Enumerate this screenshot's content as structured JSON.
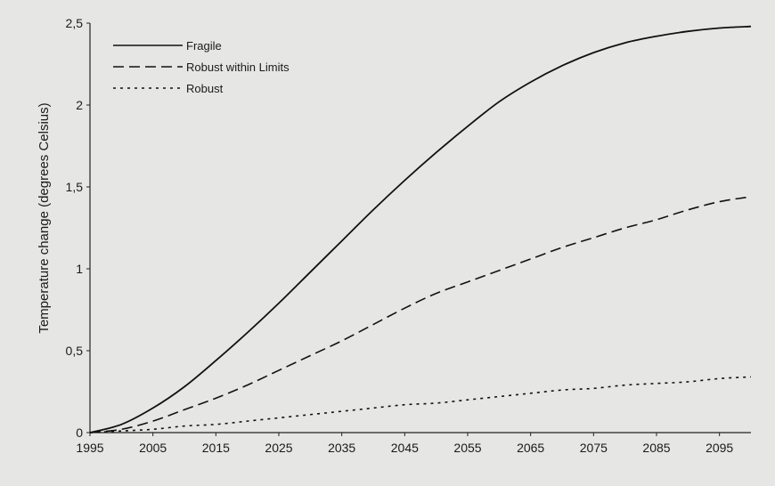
{
  "chart_data": {
    "type": "line",
    "title": "",
    "xlabel": "",
    "ylabel": "Temperature change (degrees Celsius)",
    "xlim": [
      1995,
      2100
    ],
    "ylim": [
      0,
      2.5
    ],
    "x_ticks": [
      1995,
      2005,
      2015,
      2025,
      2035,
      2045,
      2055,
      2065,
      2075,
      2085,
      2095
    ],
    "x_tick_labels": [
      "1995",
      "2005",
      "2015",
      "2025",
      "2035",
      "2045",
      "2055",
      "2065",
      "2075",
      "2085",
      "2095"
    ],
    "y_ticks": [
      0,
      0.5,
      1,
      1.5,
      2,
      2.5
    ],
    "y_tick_labels": [
      "0",
      "0,5",
      "1",
      "1,5",
      "2",
      "2,5"
    ],
    "grid": false,
    "legend_position": "top-left",
    "x": [
      1995,
      2000,
      2005,
      2010,
      2015,
      2020,
      2025,
      2030,
      2035,
      2040,
      2045,
      2050,
      2055,
      2060,
      2065,
      2070,
      2075,
      2080,
      2085,
      2090,
      2095,
      2100
    ],
    "series": [
      {
        "name": "Fragile",
        "style": "solid",
        "color": "#111111",
        "values": [
          0,
          0.05,
          0.15,
          0.28,
          0.44,
          0.61,
          0.79,
          0.98,
          1.17,
          1.36,
          1.54,
          1.71,
          1.87,
          2.02,
          2.14,
          2.24,
          2.32,
          2.38,
          2.42,
          2.45,
          2.47,
          2.48
        ]
      },
      {
        "name": "Robust within Limits",
        "style": "dashed",
        "color": "#111111",
        "values": [
          0,
          0.02,
          0.07,
          0.14,
          0.21,
          0.29,
          0.38,
          0.47,
          0.56,
          0.66,
          0.76,
          0.85,
          0.92,
          0.99,
          1.06,
          1.13,
          1.19,
          1.25,
          1.3,
          1.36,
          1.41,
          1.44
        ]
      },
      {
        "name": "Robust",
        "style": "dotted",
        "color": "#111111",
        "values": [
          0,
          0.01,
          0.02,
          0.04,
          0.05,
          0.07,
          0.09,
          0.11,
          0.13,
          0.15,
          0.17,
          0.18,
          0.2,
          0.22,
          0.24,
          0.26,
          0.27,
          0.29,
          0.3,
          0.31,
          0.33,
          0.34
        ]
      }
    ]
  }
}
